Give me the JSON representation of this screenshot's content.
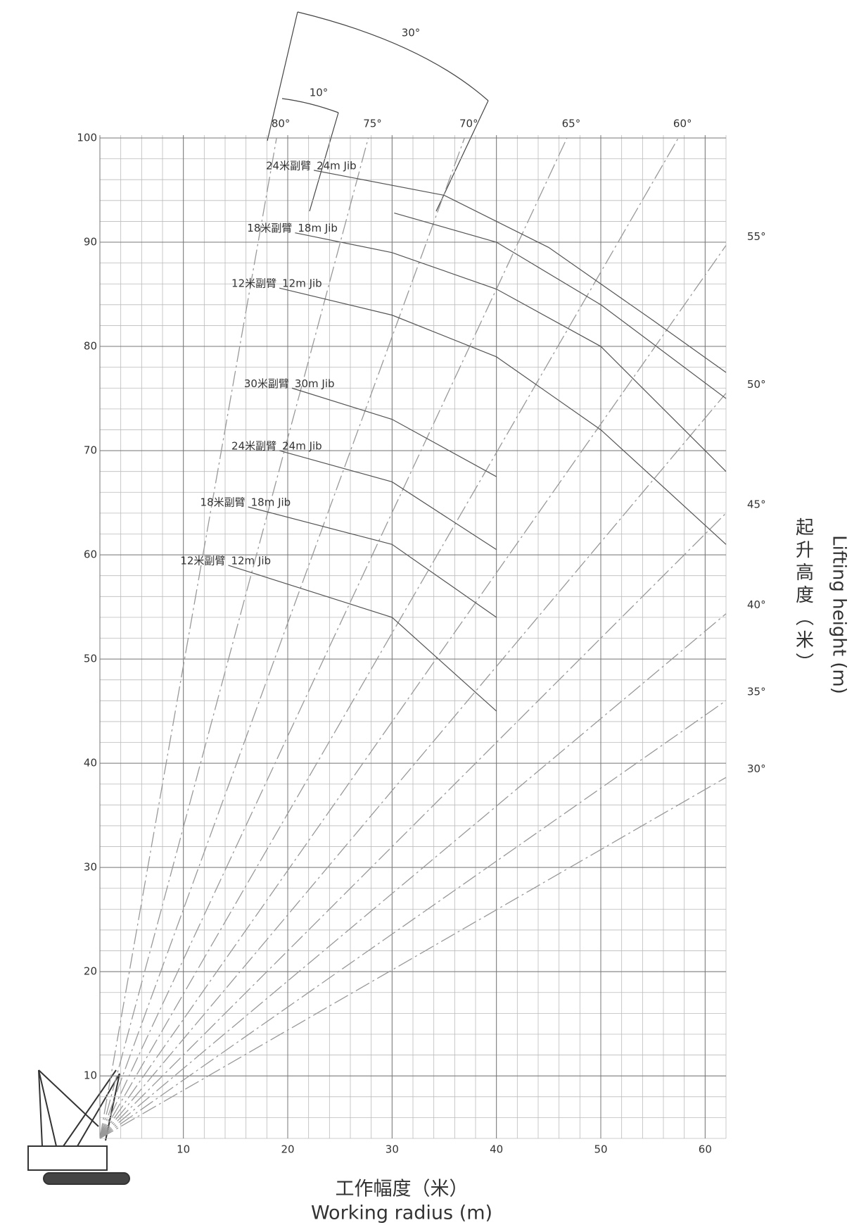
{
  "chart_data": {
    "type": "line",
    "x_title_cn": "工作幅度（米）",
    "x_title": "Working radius (m)",
    "y_title_cn": "起升高度（米）",
    "y_title": "Lifting height (m)",
    "offset_labels": [
      "30°",
      "10°"
    ],
    "xlim": [
      2,
      62
    ],
    "ylim": [
      4,
      100
    ],
    "xticks": [
      10,
      20,
      30,
      40,
      50,
      60
    ],
    "yticks": [
      10,
      20,
      30,
      40,
      50,
      60,
      70,
      80,
      90,
      100
    ],
    "minor_step": 2,
    "grid": true,
    "color": "#555555",
    "angle_lines": [
      {
        "name": "80°",
        "x": [
          2,
          18.93
        ],
        "values": [
          4,
          100
        ]
      },
      {
        "name": "75°",
        "x": [
          2,
          27.72
        ],
        "values": [
          4,
          100
        ]
      },
      {
        "name": "70°",
        "x": [
          2,
          36.94
        ],
        "values": [
          4,
          100
        ]
      },
      {
        "name": "65°",
        "x": [
          2,
          46.76
        ],
        "values": [
          4,
          100
        ]
      },
      {
        "name": "60°",
        "x": [
          2,
          57.43
        ],
        "values": [
          4,
          100
        ]
      },
      {
        "name": "55°",
        "x": [
          2,
          62
        ],
        "values": [
          4,
          89.69
        ]
      },
      {
        "name": "50°",
        "x": [
          2,
          62
        ],
        "values": [
          4,
          75.51
        ]
      },
      {
        "name": "45°",
        "x": [
          2,
          62
        ],
        "values": [
          4,
          64
        ]
      },
      {
        "name": "40°",
        "x": [
          2,
          62
        ],
        "values": [
          4,
          54.35
        ]
      },
      {
        "name": "35°",
        "x": [
          2,
          62
        ],
        "values": [
          4,
          46.01
        ]
      },
      {
        "name": "30°",
        "x": [
          2,
          62
        ],
        "values": [
          4,
          38.64
        ]
      }
    ],
    "series": [
      {
        "name_cn": "24米副臂",
        "name": "24m Jib",
        "x": [
          22.5,
          35,
          45,
          55,
          62
        ],
        "values": [
          96.9,
          94.5,
          89.5,
          82.5,
          77.5
        ]
      },
      {
        "x": [
          30.2,
          40,
          50,
          62
        ],
        "values": [
          92.8,
          90,
          84,
          75
        ]
      },
      {
        "name_cn": "18米副臂",
        "name": "18m Jib",
        "x": [
          20.7,
          30,
          40,
          50,
          62
        ],
        "values": [
          90.9,
          89,
          85.5,
          80,
          68
        ]
      },
      {
        "name_cn": "12米副臂",
        "name": "12m Jib",
        "x": [
          19.2,
          30,
          40,
          50,
          62
        ],
        "values": [
          85.6,
          83,
          79,
          72,
          61
        ]
      },
      {
        "name_cn": "30米副臂",
        "name": "30m Jib",
        "x": [
          20.4,
          30,
          40
        ],
        "values": [
          76,
          73,
          67.5
        ]
      },
      {
        "name_cn": "24米副臂",
        "name": "24m Jib",
        "x": [
          19.2,
          30,
          40
        ],
        "values": [
          70,
          67,
          60.5
        ]
      },
      {
        "name_cn": "18米副臂",
        "name": "18m Jib",
        "x": [
          16.2,
          30,
          40
        ],
        "values": [
          64.6,
          61,
          54
        ]
      },
      {
        "name_cn": "12米副臂",
        "name": "12m Jib",
        "x": [
          14.3,
          30,
          40
        ],
        "values": [
          59,
          54,
          45
        ]
      }
    ]
  }
}
